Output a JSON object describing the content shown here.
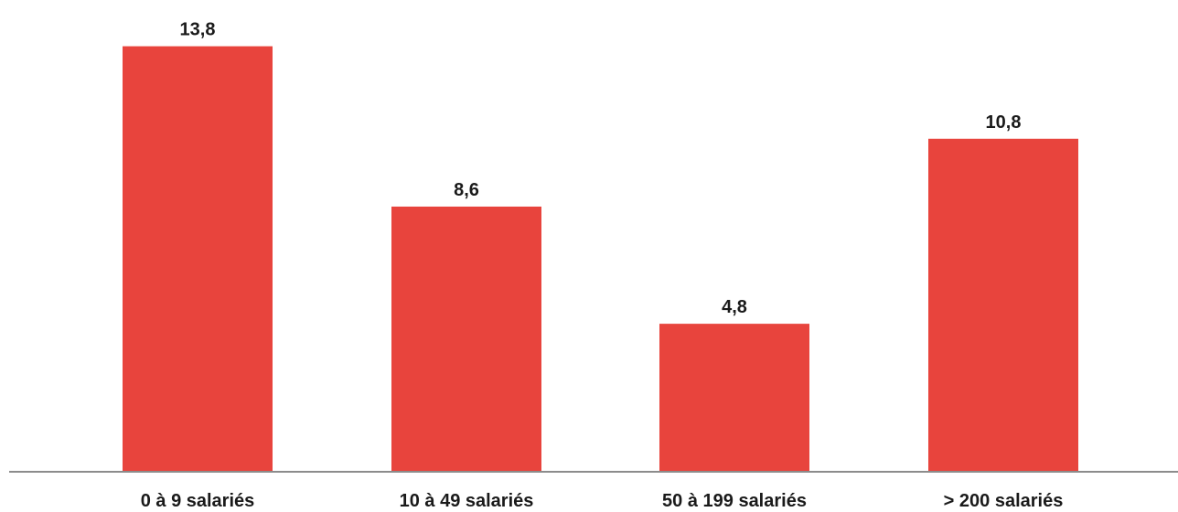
{
  "chart_data": {
    "type": "bar",
    "categories": [
      "0 à 9 salariés",
      "10 à 49 salariés",
      "50 à 199 salariés",
      "> 200 salariés"
    ],
    "values": [
      13.8,
      8.6,
      4.8,
      10.8
    ],
    "value_labels": [
      "13,8",
      "8,6",
      "4,8",
      "10,8"
    ],
    "title": "",
    "xlabel": "",
    "ylabel": "",
    "ylim": [
      0,
      15.3
    ],
    "grid": false,
    "bar_color": "#e8443d",
    "axis_color": "#8c8c8c"
  }
}
